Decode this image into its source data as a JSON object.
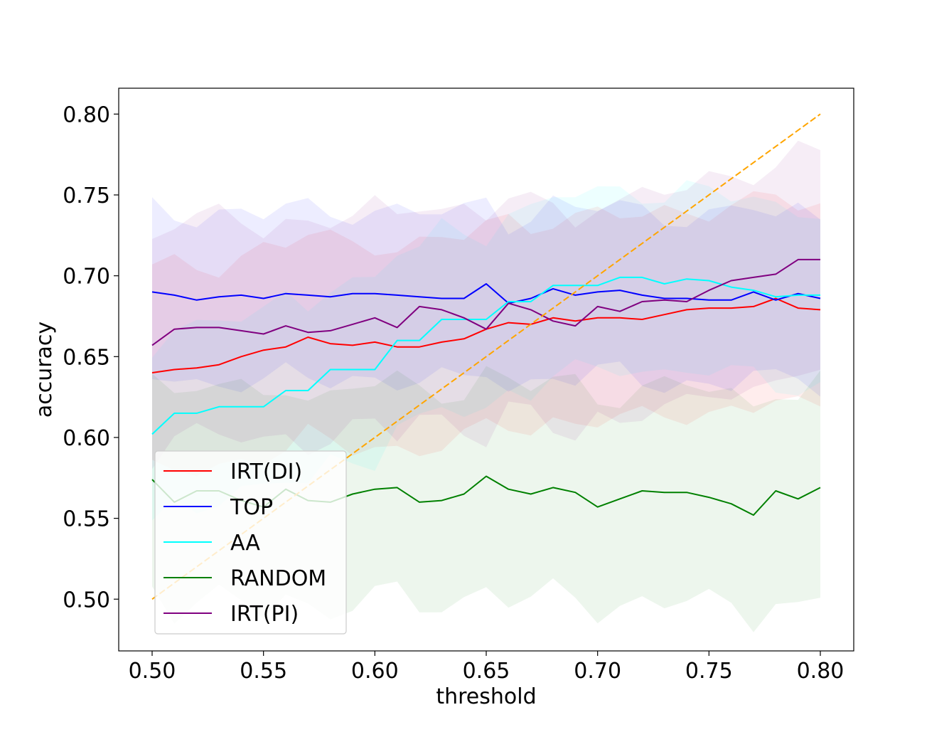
{
  "chart_data": {
    "type": "line",
    "xlabel": "threshold",
    "ylabel": "accuracy",
    "xlim": [
      0.485,
      0.815
    ],
    "ylim": [
      0.468,
      0.816
    ],
    "xticks": [
      "0.50",
      "0.55",
      "0.60",
      "0.65",
      "0.70",
      "0.75",
      "0.80"
    ],
    "yticks": [
      "0.50",
      "0.55",
      "0.60",
      "0.65",
      "0.70",
      "0.75",
      "0.80"
    ],
    "grid": false,
    "legend_position": "lower-left",
    "x": [
      0.5,
      0.51,
      0.52,
      0.53,
      0.54,
      0.55,
      0.56,
      0.57,
      0.58,
      0.59,
      0.6,
      0.61,
      0.62,
      0.63,
      0.64,
      0.65,
      0.66,
      0.67,
      0.68,
      0.69,
      0.7,
      0.71,
      0.72,
      0.73,
      0.74,
      0.75,
      0.76,
      0.77,
      0.78,
      0.79,
      0.8
    ],
    "series": [
      {
        "name": "IRT(DI)",
        "color": "#ff0000",
        "values": [
          0.64,
          0.642,
          0.643,
          0.645,
          0.65,
          0.654,
          0.656,
          0.662,
          0.658,
          0.657,
          0.659,
          0.656,
          0.656,
          0.659,
          0.661,
          0.667,
          0.671,
          0.67,
          0.674,
          0.672,
          0.674,
          0.674,
          0.673,
          0.676,
          0.679,
          0.68,
          0.68,
          0.681,
          0.686,
          0.68,
          0.679
        ],
        "band": 0.063
      },
      {
        "name": "TOP",
        "color": "#0000ff",
        "values": [
          0.69,
          0.688,
          0.685,
          0.687,
          0.688,
          0.686,
          0.689,
          0.688,
          0.687,
          0.689,
          0.689,
          0.688,
          0.687,
          0.686,
          0.686,
          0.695,
          0.683,
          0.686,
          0.692,
          0.688,
          0.69,
          0.691,
          0.688,
          0.686,
          0.686,
          0.685,
          0.685,
          0.69,
          0.685,
          0.689,
          0.686
        ],
        "band": 0.052
      },
      {
        "name": "AA",
        "color": "#00ffff",
        "values": [
          0.602,
          0.615,
          0.615,
          0.619,
          0.619,
          0.619,
          0.629,
          0.629,
          0.642,
          0.642,
          0.642,
          0.66,
          0.66,
          0.673,
          0.673,
          0.673,
          0.684,
          0.684,
          0.694,
          0.694,
          0.694,
          0.699,
          0.699,
          0.695,
          0.698,
          0.697,
          0.693,
          0.691,
          0.687,
          0.688,
          0.688
        ],
        "band": 0.055
      },
      {
        "name": "RANDOM",
        "color": "#008000",
        "values": [
          0.574,
          0.56,
          0.567,
          0.567,
          0.561,
          0.557,
          0.568,
          0.561,
          0.56,
          0.565,
          0.568,
          0.569,
          0.56,
          0.561,
          0.565,
          0.576,
          0.568,
          0.565,
          0.569,
          0.566,
          0.557,
          0.562,
          0.567,
          0.566,
          0.566,
          0.563,
          0.559,
          0.552,
          0.567,
          0.562,
          0.569
        ],
        "band": 0.066
      },
      {
        "name": "IRT(PI)",
        "color": "#800080",
        "values": [
          0.657,
          0.667,
          0.668,
          0.668,
          0.666,
          0.664,
          0.669,
          0.665,
          0.666,
          0.67,
          0.674,
          0.668,
          0.681,
          0.679,
          0.674,
          0.667,
          0.683,
          0.679,
          0.672,
          0.669,
          0.681,
          0.678,
          0.684,
          0.685,
          0.684,
          0.691,
          0.697,
          0.699,
          0.701,
          0.71,
          0.71
        ],
        "band": 0.067
      }
    ],
    "reference_line": {
      "x": [
        0.5,
        0.8
      ],
      "y": [
        0.5,
        0.8
      ],
      "color": "#ffa500",
      "style": "dashed"
    }
  }
}
